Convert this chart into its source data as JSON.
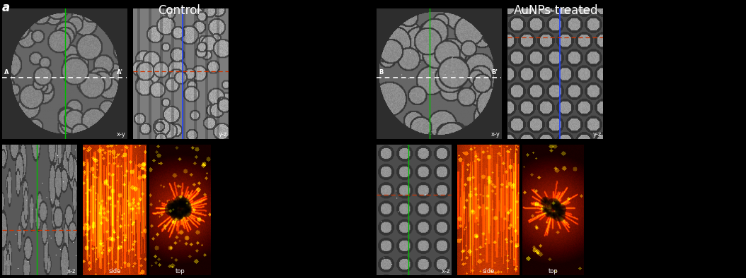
{
  "background_color": "#000000",
  "title_control": "Control",
  "title_aunps": "AuNPs-treated",
  "panel_label": "a",
  "text_color": "#ffffff",
  "green_line_color": "#00bb00",
  "blue_line_color": "#2244ff",
  "red_line_color": "#cc3300",
  "figsize": [
    10.54,
    3.94
  ],
  "dpi": 100
}
